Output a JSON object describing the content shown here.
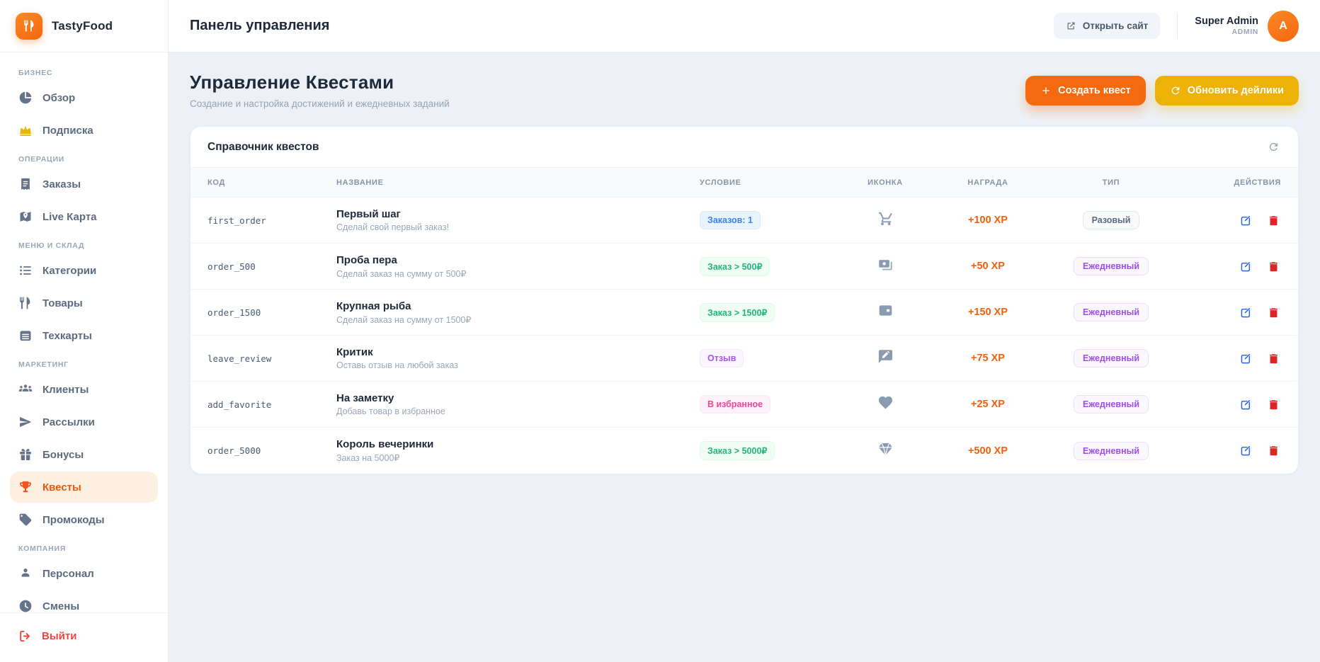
{
  "brand": {
    "name": "TastyFood"
  },
  "topbar": {
    "title": "Панель управления",
    "open_site_label": "Открыть сайт",
    "user": {
      "name": "Super Admin",
      "role": "ADMIN",
      "avatar_initial": "A"
    }
  },
  "sidebar": {
    "sections": [
      {
        "label": "БИЗНЕС",
        "items": [
          {
            "label": "Обзор",
            "icon": "pie-chart",
            "active": false
          },
          {
            "label": "Подписка",
            "icon": "crown",
            "active": false,
            "icon_yellow": true
          }
        ]
      },
      {
        "label": "ОПЕРАЦИИ",
        "items": [
          {
            "label": "Заказы",
            "icon": "receipt",
            "active": false
          },
          {
            "label": "Live Карта",
            "icon": "map-pin",
            "active": false
          }
        ]
      },
      {
        "label": "МЕНЮ И СКЛАД",
        "items": [
          {
            "label": "Категории",
            "icon": "list",
            "active": false
          },
          {
            "label": "Товары",
            "icon": "utensils",
            "active": false
          },
          {
            "label": "Техкарты",
            "icon": "recipe-book",
            "active": false
          }
        ]
      },
      {
        "label": "МАРКЕТИНГ",
        "items": [
          {
            "label": "Клиенты",
            "icon": "users",
            "active": false
          },
          {
            "label": "Рассылки",
            "icon": "paper-plane",
            "active": false
          },
          {
            "label": "Бонусы",
            "icon": "gift",
            "active": false
          },
          {
            "label": "Квесты",
            "icon": "trophy",
            "active": true
          },
          {
            "label": "Промокоды",
            "icon": "tag",
            "active": false
          }
        ]
      },
      {
        "label": "КОМПАНИЯ",
        "items": [
          {
            "label": "Персонал",
            "icon": "person",
            "active": false
          },
          {
            "label": "Смены",
            "icon": "clock",
            "active": false
          }
        ]
      }
    ],
    "logout_label": "Выйти"
  },
  "page": {
    "title": "Управление Квестами",
    "subtitle": "Создание и настройка достижений и ежедневных заданий",
    "create_button": "Создать квест",
    "refresh_button": "Обновить дейлики"
  },
  "table": {
    "card_title": "Справочник квестов",
    "columns": [
      "КОД",
      "НАЗВАНИЕ",
      "УСЛОВИЕ",
      "ИКОНКА",
      "НАГРАДА",
      "ТИП",
      "ДЕЙСТВИЯ"
    ],
    "rows": [
      {
        "code": "first_order",
        "name": "Первый шаг",
        "description": "Сделай свой первый заказ!",
        "condition": "Заказов: 1",
        "condition_variant": "blue",
        "icon": "cart",
        "reward": "+100 XP",
        "type": "Разовый",
        "type_variant": "neutral"
      },
      {
        "code": "order_500",
        "name": "Проба пера",
        "description": "Сделай заказ на сумму от 500₽",
        "condition": "Заказ > 500₽",
        "condition_variant": "green",
        "icon": "banknotes",
        "reward": "+50 XP",
        "type": "Ежедневный",
        "type_variant": "purple"
      },
      {
        "code": "order_1500",
        "name": "Крупная рыба",
        "description": "Сделай заказ на сумму от 1500₽",
        "condition": "Заказ > 1500₽",
        "condition_variant": "green",
        "icon": "wallet",
        "reward": "+150 XP",
        "type": "Ежедневный",
        "type_variant": "purple"
      },
      {
        "code": "leave_review",
        "name": "Критик",
        "description": "Оставь отзыв на любой заказ",
        "condition": "Отзыв",
        "condition_variant": "purple",
        "icon": "rate-review",
        "reward": "+75 XP",
        "type": "Ежедневный",
        "type_variant": "purple"
      },
      {
        "code": "add_favorite",
        "name": "На заметку",
        "description": "Добавь товар в избранное",
        "condition": "В избранное",
        "condition_variant": "pink",
        "icon": "heart",
        "reward": "+25 XP",
        "type": "Ежедневный",
        "type_variant": "purple"
      },
      {
        "code": "order_5000",
        "name": "Король вечеринки",
        "description": "Заказ на 5000₽",
        "condition": "Заказ > 5000₽",
        "condition_variant": "green",
        "icon": "diamond",
        "reward": "+500 XP",
        "type": "Ежедневный",
        "type_variant": "purple"
      }
    ]
  },
  "colors": {
    "primary_orange": "#f5690f",
    "accent_yellow": "#ecb306",
    "reward_orange": "#f2600c",
    "active_nav_bg": "#fdf0e1",
    "logout_red": "#ef4444",
    "edit_blue": "#2563eb",
    "delete_red": "#dc2626"
  }
}
